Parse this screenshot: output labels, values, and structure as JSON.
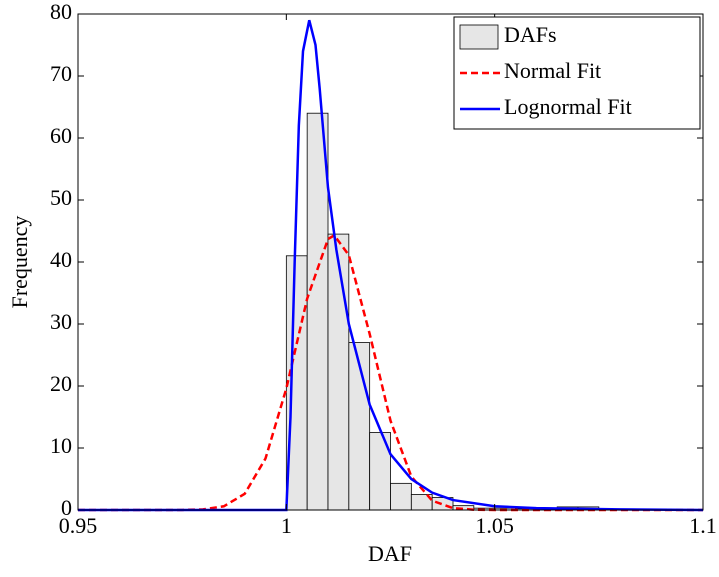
{
  "chart_data": {
    "type": "histogram",
    "xlabel": "DAF",
    "ylabel": "Frequency",
    "bins": [
      1.0,
      1.005,
      1.01,
      1.015,
      1.02,
      1.025,
      1.03,
      1.035,
      1.04,
      1.045,
      1.05,
      1.055,
      1.06,
      1.065,
      1.07,
      1.075
    ],
    "counts": [
      41,
      64,
      44.5,
      27,
      12.5,
      4.3,
      2.5,
      2,
      0.7,
      0.3,
      0.3,
      0.2,
      0.2,
      0.5,
      0.5
    ],
    "bar_name": "DAFs",
    "bar_color": "#e6e6e6",
    "lines": [
      {
        "name": "Normal Fit",
        "color": "#ff0000",
        "dash": true,
        "x": [
          0.95,
          0.975,
          0.98,
          0.985,
          0.99,
          0.995,
          1.0,
          1.005,
          1.01,
          1.0115,
          1.015,
          1.02,
          1.025,
          1.03,
          1.035,
          1.04,
          1.045,
          1.05,
          1.1
        ],
        "y": [
          0,
          0.01,
          0.1,
          0.6,
          2.6,
          8.3,
          19.6,
          34.1,
          43.7,
          44.3,
          41.1,
          28.4,
          14.4,
          5.4,
          1.5,
          0.3,
          0.05,
          0,
          0
        ]
      },
      {
        "name": "Lognormal Fit",
        "color": "#0000ff",
        "dash": false,
        "x": [
          0.95,
          1.0,
          1.001,
          1.002,
          1.003,
          1.004,
          1.0055,
          1.007,
          1.008,
          1.01,
          1.012,
          1.015,
          1.02,
          1.025,
          1.03,
          1.035,
          1.04,
          1.05,
          1.06,
          1.08,
          1.1
        ],
        "y": [
          0,
          0,
          15,
          40,
          62,
          74,
          79,
          75,
          68,
          52,
          42,
          30,
          17,
          9,
          5,
          2.8,
          1.6,
          0.6,
          0.3,
          0.1,
          0
        ]
      }
    ],
    "xlim": [
      0.95,
      1.1
    ],
    "xticks": [
      0.95,
      1,
      1.05,
      1.1
    ],
    "ylim": [
      0,
      80
    ],
    "yticks": [
      0,
      10,
      20,
      30,
      40,
      50,
      60,
      70,
      80
    ],
    "legend": "northeast"
  }
}
